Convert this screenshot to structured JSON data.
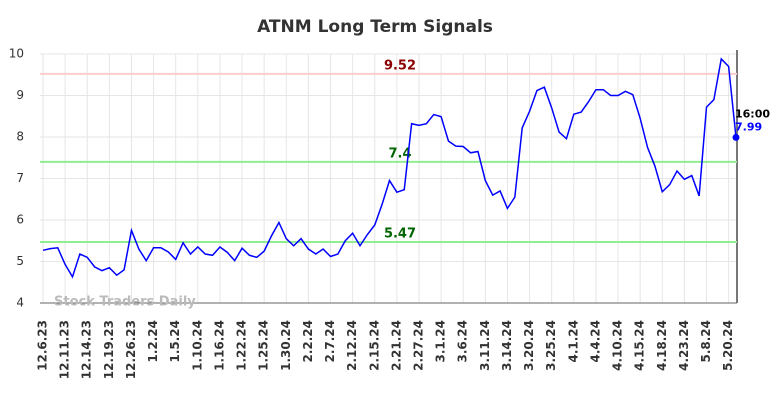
{
  "chart_data": {
    "type": "line",
    "title": "ATNM Long Term Signals",
    "watermark": "Stock Traders Daily",
    "categories": [
      "12.6.23",
      null,
      null,
      "12.11.23",
      null,
      null,
      "12.14.23",
      null,
      null,
      "12.19.23",
      null,
      null,
      "12.26.23",
      null,
      null,
      "1.2.24",
      null,
      null,
      "1.5.24",
      null,
      null,
      "1.10.24",
      null,
      null,
      "1.16.24",
      null,
      null,
      "1.22.24",
      null,
      null,
      "1.25.24",
      null,
      null,
      "1.30.24",
      null,
      null,
      "2.2.24",
      null,
      null,
      "2.7.24",
      null,
      null,
      "2.12.24",
      null,
      null,
      "2.15.24",
      null,
      null,
      "2.21.24",
      null,
      null,
      "2.27.24",
      null,
      null,
      "3.1.24",
      null,
      null,
      "3.6.24",
      null,
      null,
      "3.11.24",
      null,
      null,
      "3.14.24",
      null,
      null,
      "3.20.24",
      null,
      null,
      "3.25.24",
      null,
      null,
      "4.1.24",
      null,
      null,
      "4.4.24",
      null,
      null,
      "4.10.24",
      null,
      null,
      "4.15.24",
      null,
      null,
      "4.18.24",
      null,
      null,
      "4.23.24",
      null,
      null,
      "5.8.24",
      null,
      null,
      "5.20.24",
      null
    ],
    "values": [
      5.27,
      5.31,
      5.33,
      4.93,
      4.63,
      5.18,
      5.1,
      4.87,
      4.78,
      4.85,
      4.67,
      4.8,
      5.75,
      5.3,
      5.02,
      5.33,
      5.33,
      5.23,
      5.05,
      5.45,
      5.18,
      5.35,
      5.18,
      5.15,
      5.35,
      5.22,
      5.02,
      5.32,
      5.15,
      5.1,
      5.25,
      5.62,
      5.94,
      5.55,
      5.38,
      5.55,
      5.3,
      5.18,
      5.3,
      5.12,
      5.18,
      5.5,
      5.68,
      5.38,
      5.65,
      5.88,
      6.38,
      6.95,
      6.67,
      6.73,
      8.32,
      8.28,
      8.32,
      8.54,
      8.49,
      7.9,
      7.78,
      7.77,
      7.62,
      7.65,
      6.95,
      6.6,
      6.7,
      6.28,
      6.55,
      8.22,
      8.62,
      9.12,
      9.2,
      8.7,
      8.12,
      7.96,
      8.55,
      8.6,
      8.85,
      9.14,
      9.14,
      9.0,
      9.0,
      9.1,
      9.02,
      8.45,
      7.75,
      7.3,
      6.68,
      6.85,
      7.18,
      6.98,
      7.07,
      6.58,
      8.72,
      8.9,
      9.88,
      9.7,
      7.99
    ],
    "color": "#0000ff",
    "last_label": "16:00",
    "reference_lines": [
      {
        "value": 9.52,
        "color": "#ffcccc",
        "label_color": "#8b0000"
      },
      {
        "value": 7.4,
        "color": "#90ee90",
        "label_color": "#006400"
      },
      {
        "value": 5.47,
        "color": "#90ee90",
        "label_color": "#006400"
      }
    ],
    "ylim": [
      4,
      10
    ],
    "yticks": [
      4,
      5,
      6,
      7,
      8,
      9,
      10
    ],
    "grid": true
  }
}
